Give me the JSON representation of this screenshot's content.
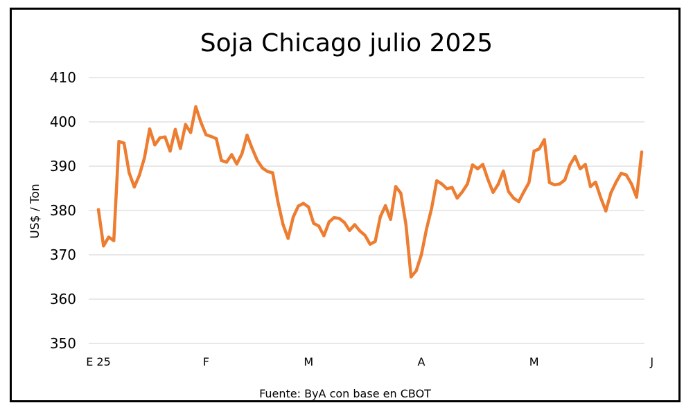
{
  "chart_data": {
    "type": "line",
    "title": "Soja Chicago julio 2025",
    "ylabel": "US$ / Ton",
    "xlabel": "",
    "source": "Fuente: ByA con base en CBOT",
    "ylim": [
      350,
      410
    ],
    "yticks": [
      "410",
      "400",
      "390",
      "380",
      "370",
      "360",
      "350"
    ],
    "ytick_values": [
      410,
      400,
      390,
      380,
      370,
      360,
      350
    ],
    "xticks": [
      {
        "label": "E 25",
        "index": 0
      },
      {
        "label": "F",
        "index": 21
      },
      {
        "label": "M",
        "index": 41
      },
      {
        "label": "A",
        "index": 63
      },
      {
        "label": "M",
        "index": 85
      },
      {
        "label": "J",
        "index": 108
      }
    ],
    "grid": true,
    "color": "#ED7D31",
    "series": [
      {
        "values": [
          380.2,
          372.0,
          374.0,
          373.2,
          395.6,
          395.2,
          388.5,
          385.3,
          388.0,
          392.0,
          398.4,
          394.8,
          396.4,
          396.6,
          393.4,
          398.3,
          394.0,
          399.4,
          397.6,
          403.4,
          399.9,
          397.1,
          396.7,
          396.2,
          391.3,
          390.9,
          392.6,
          390.5,
          392.8,
          397.0,
          394.0,
          391.3,
          389.6,
          388.8,
          388.5,
          382.1,
          376.9,
          373.7,
          378.5,
          381.0,
          381.6,
          380.8,
          377.1,
          376.5,
          374.3,
          377.4,
          378.4,
          378.2,
          377.3,
          375.5,
          376.8,
          375.4,
          374.4,
          372.4,
          373.0,
          378.6,
          381.1,
          378.0,
          385.4,
          383.9,
          376.8,
          365.0,
          366.4,
          370.0,
          375.8,
          380.5,
          386.7,
          386.0,
          384.9,
          385.2,
          382.8,
          384.2,
          386.0,
          390.3,
          389.4,
          390.4,
          387.0,
          384.1,
          385.9,
          388.9,
          384.3,
          382.8,
          382.0,
          384.2,
          386.3,
          393.4,
          393.9,
          396.0,
          386.3,
          385.8,
          386.0,
          386.9,
          390.3,
          392.2,
          389.4,
          390.4,
          385.4,
          386.4,
          382.9,
          379.9,
          384.0,
          386.4,
          388.4,
          388.0,
          386.0,
          383.0,
          393.2
        ]
      }
    ]
  }
}
